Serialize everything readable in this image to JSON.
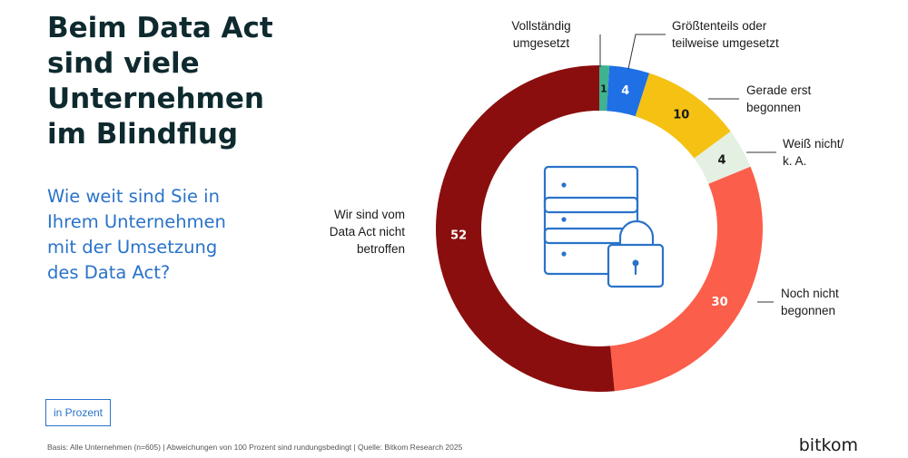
{
  "title": "Beim Data Act\nsind viele\nUnternehmen\nim Blindflug",
  "subtitle": "Wie weit sind Sie in\nIhrem Unternehmen\nmit der Umsetzung\ndes Data Act?",
  "unit_label": "in Prozent",
  "footnote": "Basis: Alle Unternehmen (n=605) | Abweichungen von 100 Prozent sind rundungsbedingt | Quelle: Bitkom Research 2025",
  "brand": "bitkom",
  "center_icon": "server-lock-icon",
  "chart_data": {
    "type": "pie",
    "variant": "donut",
    "unit": "in Prozent",
    "slices": [
      {
        "label": "Vollständig umgesetzt",
        "value": 1,
        "color": "#3fb28f"
      },
      {
        "label": "Größtenteils oder teilweise umgesetzt",
        "value": 4,
        "color": "#1f6fe5"
      },
      {
        "label": "Gerade erst begonnen",
        "value": 10,
        "color": "#f5c113"
      },
      {
        "label": "Weiß nicht/ k. A.",
        "value": 4,
        "color": "#e4f0e2"
      },
      {
        "label": "Noch nicht begonnen",
        "value": 30,
        "color": "#fb5e4a"
      },
      {
        "label": "Wir sind vom Data Act nicht betroffen",
        "value": 52,
        "color": "#8b0e0e"
      }
    ]
  }
}
